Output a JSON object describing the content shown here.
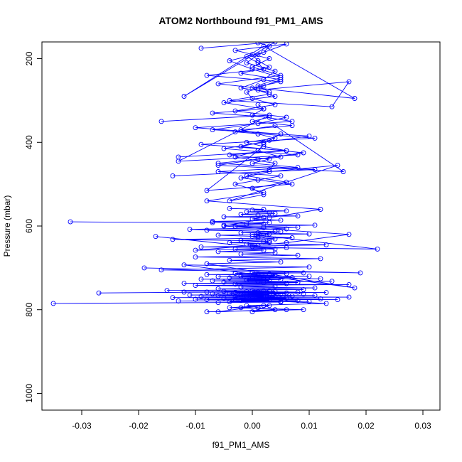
{
  "chart_data": {
    "type": "line",
    "title": "ATOM2 Northbound f91_PM1_AMS",
    "xlabel": "f91_PM1_AMS",
    "ylabel": "Pressure (mbar)",
    "xlim": [
      -0.037,
      0.033
    ],
    "ylim": [
      1040,
      160
    ],
    "y_inverted": true,
    "x_ticks": [
      -0.03,
      -0.02,
      -0.01,
      0.0,
      0.01,
      0.02,
      0.03
    ],
    "x_tick_labels": [
      "-0.03",
      "-0.02",
      "-0.01",
      "0.00",
      "0.01",
      "0.02",
      "0.03"
    ],
    "y_ticks": [
      200,
      400,
      600,
      800,
      1000
    ],
    "y_tick_labels": [
      "200",
      "400",
      "600",
      "800",
      "1000"
    ],
    "grid": false,
    "marker": "open-circle",
    "color": "#0000ff",
    "series": [
      {
        "x": [
          -0.035,
          -0.006,
          0.005,
          -0.004,
          0.01,
          -0.013,
          0.008,
          -0.002,
          0.003,
          -0.008,
          0.015,
          -0.01,
          0.012,
          0.0,
          -0.005,
          0.006,
          -0.014,
          0.017,
          -0.003,
          0.004,
          -0.009,
          0.002,
          -0.001,
          0.007,
          -0.006,
          0.011,
          -0.011,
          0.001,
          0.003,
          -0.002,
          0.005,
          -0.007,
          0.009,
          0.0,
          -0.004,
          0.006,
          0.002,
          -0.003,
          0.013,
          -0.012,
          0.008,
          0.001,
          -0.001,
          0.004,
          -0.005,
          0.003,
          0.002,
          0.0
        ],
        "y": [
          785,
          783,
          782,
          781,
          780,
          779,
          778,
          778,
          777,
          776,
          776,
          775,
          774,
          773,
          772,
          772,
          771,
          770,
          769,
          769,
          768,
          768,
          767,
          767,
          766,
          766,
          765,
          764,
          764,
          763,
          763,
          762,
          762,
          761,
          761,
          760,
          760,
          759,
          759,
          758,
          758,
          757,
          757,
          756,
          756,
          755,
          755,
          754
        ]
      },
      {
        "x": [
          -0.027,
          -0.008,
          0.003,
          -0.015,
          0.009,
          -0.006,
          0.011,
          -0.002,
          0.004,
          -0.01,
          0.017,
          -0.003,
          0.006,
          -0.012,
          0.002,
          0.008,
          -0.005,
          0.001,
          0.014,
          -0.007,
          0.003,
          -0.001,
          0.005,
          -0.009,
          0.012,
          0.0,
          -0.004,
          0.007,
          0.002,
          -0.006,
          0.01,
          -0.002,
          0.004,
          0.001,
          -0.008,
          0.003,
          0.006,
          -0.003,
          0.009,
          0.0
        ],
        "y": [
          760,
          758,
          756,
          754,
          752,
          750,
          748,
          746,
          744,
          742,
          740,
          739,
          738,
          737,
          736,
          735,
          734,
          733,
          732,
          731,
          730,
          729,
          728,
          727,
          726,
          725,
          724,
          723,
          722,
          721,
          720,
          719,
          718,
          717,
          716,
          715,
          714,
          713,
          712,
          711
        ]
      },
      {
        "x": [
          -0.032,
          -0.007,
          0.002,
          -0.005,
          0.008,
          -0.011,
          0.005,
          0.0,
          0.022,
          -0.009,
          0.013,
          -0.004,
          0.003,
          -0.014,
          0.007,
          0.001,
          -0.006,
          0.01,
          -0.002,
          0.004,
          -0.008,
          0.006,
          0.002,
          -0.003,
          0.011,
          -0.001,
          0.003,
          -0.007,
          0.005,
          0.0,
          0.002,
          -0.005,
          0.008,
          0.001,
          -0.002,
          0.004,
          0.003,
          -0.001,
          0.006,
          0.0,
          0.002,
          -0.004
        ],
        "y": [
          590,
          592,
          595,
          598,
          603,
          608,
          614,
          620,
          655,
          650,
          645,
          640,
          636,
          632,
          628,
          625,
          622,
          619,
          616,
          613,
          610,
          607,
          604,
          601,
          598,
          595,
          592,
          589,
          586,
          583,
          580,
          578,
          576,
          574,
          572,
          570,
          568,
          566,
          564,
          562,
          560,
          558
        ]
      },
      {
        "x": [
          -0.019,
          0.019,
          -0.016,
          0.01,
          -0.012,
          0.018,
          -0.008,
          0.005,
          -0.004,
          0.012,
          -0.01,
          0.008,
          -0.002,
          0.004,
          -0.006,
          0.002,
          -0.003,
          0.006,
          0.0,
          0.001,
          -0.001,
          0.003,
          0.002,
          -0.002,
          0.004,
          0.001,
          0.0,
          0.002,
          0.003,
          0.001
        ],
        "y": [
          700,
          712,
          705,
          698,
          693,
          748,
          690,
          686,
          682,
          678,
          674,
          670,
          667,
          664,
          661,
          658,
          655,
          652,
          649,
          646,
          643,
          640,
          637,
          634,
          631,
          628,
          625,
          622,
          619,
          616
        ]
      },
      {
        "x": [
          -0.017,
          0.004,
          -0.01,
          0.006,
          0.017,
          -0.005,
          0.003,
          0.012,
          -0.008,
          0.002,
          -0.003,
          0.001,
          0.005,
          -0.006,
          0.008,
          0.0,
          0.003,
          -0.004,
          0.006,
          0.002,
          -0.001,
          0.004,
          0.001,
          -0.002,
          0.007,
          0.0,
          0.003,
          -0.007,
          0.002,
          0.001
        ],
        "y": [
          625,
          655,
          658,
          640,
          620,
          600,
          580,
          560,
          540,
          520,
          500,
          490,
          480,
          470,
          460,
          450,
          440,
          430,
          420,
          410,
          400,
          390,
          380,
          370,
          360,
          350,
          340,
          330,
          320,
          310
        ]
      },
      {
        "x": [
          -0.013,
          0.006,
          -0.009,
          0.011,
          -0.003,
          0.004,
          0.016,
          -0.006,
          0.001,
          0.009,
          -0.002,
          0.003,
          0.005,
          -0.01,
          0.007,
          0.0,
          0.002,
          -0.005,
          0.004,
          0.001,
          0.017,
          0.014,
          -0.004,
          0.003,
          0.0,
          0.005,
          -0.008,
          0.002,
          0.001,
          -0.001
        ],
        "y": [
          435,
          420,
          405,
          390,
          375,
          360,
          470,
          455,
          440,
          425,
          410,
          395,
          380,
          365,
          350,
          335,
          320,
          305,
          290,
          275,
          255,
          315,
          300,
          285,
          270,
          255,
          240,
          225,
          210,
          195
        ]
      },
      {
        "x": [
          -0.009,
          0.004,
          -0.012,
          0.002,
          0.018,
          -0.006,
          0.005,
          0.0,
          0.003,
          -0.003,
          0.006,
          0.001,
          -0.001,
          0.004,
          0.002,
          -0.002,
          0.003,
          0.001,
          0.005,
          0.0,
          -0.004,
          0.002,
          0.003,
          0.001
        ],
        "y": [
          175,
          160,
          290,
          170,
          295,
          260,
          240,
          220,
          200,
          180,
          165,
          190,
          210,
          230,
          250,
          270,
          280,
          265,
          245,
          225,
          205,
          185,
          170,
          162
        ]
      },
      {
        "x": [
          -0.016,
          0.003,
          -0.013,
          0.008,
          -0.005,
          0.002,
          0.01,
          -0.007,
          0.001,
          0.006,
          -0.003,
          0.004,
          0.0,
          -0.001,
          0.002,
          0.005,
          -0.002,
          0.003,
          0.001,
          0.0
        ],
        "y": [
          350,
          335,
          445,
          430,
          415,
          400,
          385,
          370,
          355,
          340,
          325,
          310,
          295,
          280,
          265,
          250,
          235,
          220,
          205,
          190
        ]
      },
      {
        "x": [
          -0.014,
          0.011,
          -0.006,
          0.005,
          0.001,
          -0.008,
          0.007,
          -0.002,
          0.003,
          0.015,
          -0.004,
          0.002,
          0.0,
          0.006,
          -0.001,
          0.003,
          0.004,
          -0.003,
          0.001,
          0.002
        ],
        "y": [
          480,
          465,
          450,
          435,
          420,
          515,
          500,
          485,
          470,
          455,
          540,
          525,
          510,
          495,
          480,
          465,
          450,
          435,
          420,
          405
        ]
      },
      {
        "x": [
          -0.008,
          0.009,
          -0.004,
          0.003,
          0.0,
          0.006,
          -0.002,
          0.002,
          -0.006,
          0.004,
          0.001,
          -0.001,
          0.013,
          0.005,
          -0.003,
          0.002,
          0.001,
          0.0
        ],
        "y": [
          805,
          800,
          795,
          790,
          805,
          800,
          795,
          790,
          805,
          800,
          795,
          790,
          785,
          780,
          775,
          770,
          765,
          760
        ]
      }
    ]
  }
}
